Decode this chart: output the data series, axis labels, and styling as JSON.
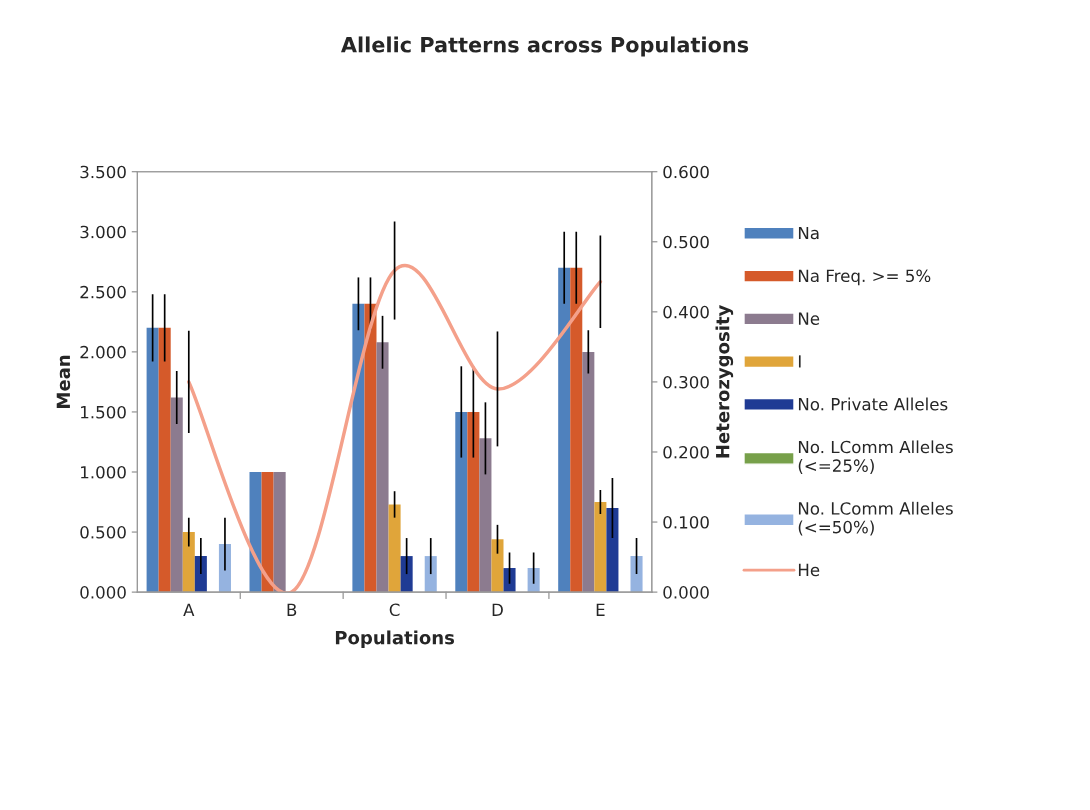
{
  "chart_data": {
    "type": "bar",
    "title": "Allelic Patterns across Populations",
    "xlabel": "Populations",
    "ylabel": "Mean",
    "y2label": "Heterozygosity",
    "categories": [
      "A",
      "B",
      "C",
      "D",
      "E"
    ],
    "series": [
      {
        "name": "Na",
        "color": "#4f81bd",
        "values": [
          2.2,
          1.0,
          2.4,
          1.5,
          2.7
        ],
        "errors": [
          0.28,
          null,
          0.22,
          0.38,
          0.3
        ]
      },
      {
        "name": "Na Freq. >= 5%",
        "color": "#d55a2a",
        "values": [
          2.2,
          1.0,
          2.4,
          1.5,
          2.7
        ],
        "errors": [
          0.28,
          null,
          0.22,
          0.38,
          0.3
        ]
      },
      {
        "name": "Ne",
        "color": "#8c7b8f",
        "values": [
          1.62,
          1.0,
          2.08,
          1.28,
          2.0
        ],
        "errors": [
          0.22,
          null,
          0.22,
          0.3,
          0.18
        ]
      },
      {
        "name": "I",
        "color": "#e0a53a",
        "values": [
          0.5,
          0.0,
          0.73,
          0.44,
          0.75
        ],
        "errors": [
          0.12,
          null,
          0.11,
          0.12,
          0.1
        ]
      },
      {
        "name": "No. Private Alleles",
        "color": "#1f3b94",
        "values": [
          0.3,
          0.0,
          0.3,
          0.2,
          0.7
        ],
        "errors": [
          0.15,
          null,
          0.15,
          0.13,
          0.25
        ]
      },
      {
        "name": "No. LComm Alleles\n(<=25%)",
        "color": "#77a04a",
        "values": [
          0.0,
          0.0,
          0.0,
          0.0,
          0.0
        ]
      },
      {
        "name": "No. LComm Alleles\n(<=50%)",
        "color": "#95b3e0",
        "values": [
          0.4,
          0.0,
          0.3,
          0.2,
          0.3
        ],
        "errors": [
          0.22,
          null,
          0.15,
          0.13,
          0.15
        ]
      },
      {
        "name": "He",
        "type": "line",
        "axis": "y2",
        "color": "#f4a08a",
        "values": [
          0.3,
          0.0,
          0.459,
          0.29,
          0.443
        ],
        "errors": [
          0.073,
          null,
          0.07,
          0.082,
          0.066
        ]
      }
    ],
    "ylim": [
      0,
      3.5
    ],
    "yticks": [
      {
        "value": 0,
        "label": "0.000"
      },
      {
        "value": 0.5,
        "label": "0.500"
      },
      {
        "value": 1.0,
        "label": "1.000"
      },
      {
        "value": 1.5,
        "label": "1.500"
      },
      {
        "value": 2.0,
        "label": "2.000"
      },
      {
        "value": 2.5,
        "label": "2.500"
      },
      {
        "value": 3.0,
        "label": "3.000"
      },
      {
        "value": 3.5,
        "label": "3.500"
      }
    ],
    "y2lim": [
      0,
      0.6
    ],
    "y2ticks": [
      {
        "value": 0,
        "label": "0.000"
      },
      {
        "value": 0.1,
        "label": "0.100"
      },
      {
        "value": 0.2,
        "label": "0.200"
      },
      {
        "value": 0.3,
        "label": "0.300"
      },
      {
        "value": 0.4,
        "label": "0.400"
      },
      {
        "value": 0.5,
        "label": "0.500"
      },
      {
        "value": 0.6,
        "label": "0.600"
      }
    ],
    "legend": "right",
    "grid": false
  }
}
